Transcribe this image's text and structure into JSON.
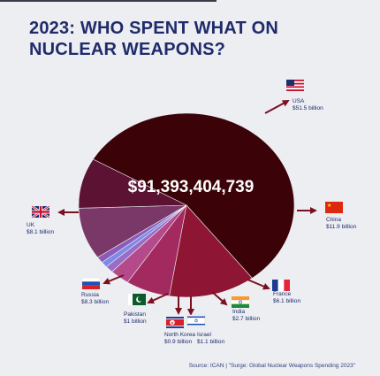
{
  "title": "2023: WHO SPENT WHAT ON NUCLEAR WEAPONS?",
  "source": "Source: ICAN | \"Surge: Global Nuclear Weapons Spending 2023\"",
  "chart_data": {
    "type": "pie",
    "total_label": "$91,393,404,739",
    "unit": "billion USD",
    "slices": [
      {
        "name": "USA",
        "value": 51.5,
        "label": "$51.5 billion",
        "color": "#3b0208",
        "flag": "usa-flag-icon"
      },
      {
        "name": "China",
        "value": 11.9,
        "label": "$11.9 billion",
        "color": "#8e1533",
        "flag": "china-flag-icon"
      },
      {
        "name": "France",
        "value": 6.1,
        "label": "$6.1 billion",
        "color": "#a32a5f",
        "flag": "france-flag-icon"
      },
      {
        "name": "India",
        "value": 2.7,
        "label": "$2.7 billion",
        "color": "#b44a8a",
        "flag": "india-flag-icon"
      },
      {
        "name": "Israel",
        "value": 1.1,
        "label": "$1.1 billion",
        "color": "#9a6cc7",
        "flag": "israel-flag-icon"
      },
      {
        "name": "North Korea",
        "value": 0.9,
        "label": "$0.9 billion",
        "color": "#7e8ae6",
        "flag": "north-korea-flag-icon"
      },
      {
        "name": "Pakistan",
        "value": 1.0,
        "label": "$1 billion",
        "color": "#8a5bb8",
        "flag": "pakistan-flag-icon"
      },
      {
        "name": "Russia",
        "value": 8.3,
        "label": "$8.3 billion",
        "color": "#7a3868",
        "flag": "russia-flag-icon"
      },
      {
        "name": "UK",
        "value": 8.1,
        "label": "$8.1 billion",
        "color": "#5c1232",
        "flag": "uk-flag-icon"
      }
    ]
  }
}
